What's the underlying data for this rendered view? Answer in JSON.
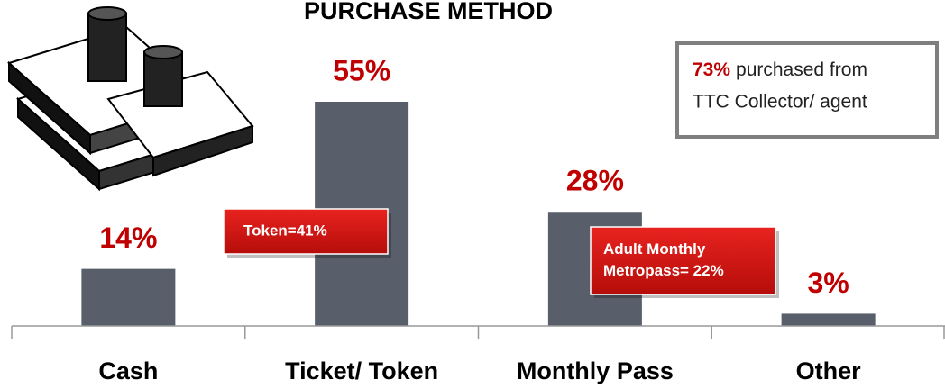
{
  "chart_data": {
    "type": "bar",
    "title": "PURCHASE METHOD",
    "categories": [
      "Cash",
      "Ticket/ Token",
      "Monthly Pass",
      "Other"
    ],
    "values": [
      14,
      55,
      28,
      3
    ],
    "value_labels": [
      "14%",
      "55%",
      "28%",
      "3%"
    ],
    "color": "#585f6b",
    "annotations": [
      [
        "Token=41%"
      ],
      [
        "Adult Monthly",
        "Metropass= 22%"
      ]
    ],
    "callout": {
      "highlight": "73%",
      "lines": [
        "purchased from",
        "TTC Collector/ agent"
      ]
    }
  }
}
